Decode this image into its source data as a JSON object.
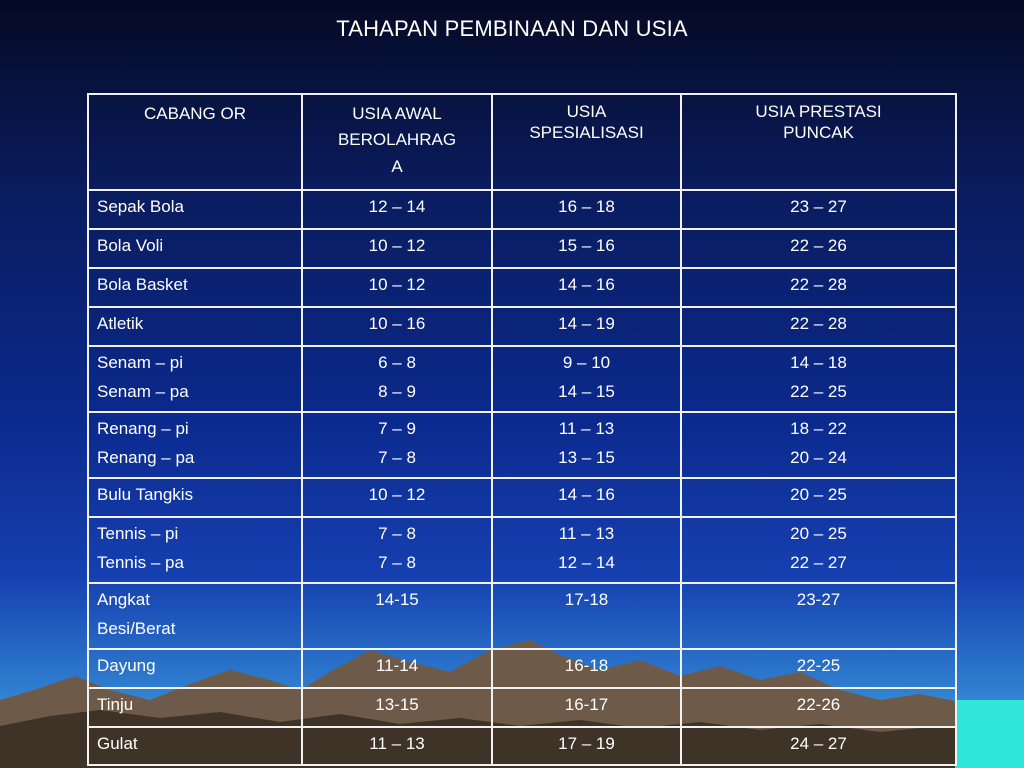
{
  "title": "TAHAPAN PEMBINAAN DAN USIA",
  "table": {
    "headers": [
      "CABANG OR",
      "USIA AWAL BEROLAHRAGA",
      "USIA SPESIALISASI",
      "USIA PRESTASI PUNCAK"
    ],
    "header_lines": {
      "col2": [
        "USIA AWAL",
        "BEROLAHRAG",
        "A"
      ],
      "col3": [
        "USIA",
        "SPESIALISASI"
      ],
      "col4": [
        "USIA PRESTASI",
        "PUNCAK"
      ]
    },
    "rows": [
      {
        "sport": [
          "Sepak Bola"
        ],
        "awal": [
          "12 – 14"
        ],
        "spesialisasi": [
          "16 – 18"
        ],
        "puncak": [
          "23 – 27"
        ]
      },
      {
        "sport": [
          "Bola Voli"
        ],
        "awal": [
          "10 – 12"
        ],
        "spesialisasi": [
          "15 – 16"
        ],
        "puncak": [
          "22 – 26"
        ]
      },
      {
        "sport": [
          "Bola Basket"
        ],
        "awal": [
          "10 – 12"
        ],
        "spesialisasi": [
          "14 – 16"
        ],
        "puncak": [
          "22 – 28"
        ]
      },
      {
        "sport": [
          "Atletik"
        ],
        "awal": [
          "10 – 16"
        ],
        "spesialisasi": [
          "14 – 19"
        ],
        "puncak": [
          "22 – 28"
        ]
      },
      {
        "sport": [
          "Senam – pi",
          "Senam – pa"
        ],
        "awal": [
          "6 – 8",
          "8 – 9"
        ],
        "spesialisasi": [
          "9 – 10",
          "14 – 15"
        ],
        "puncak": [
          "14 – 18",
          "22 – 25"
        ]
      },
      {
        "sport": [
          "Renang – pi",
          "Renang – pa"
        ],
        "awal": [
          "7 – 9",
          "7 – 8"
        ],
        "spesialisasi": [
          "11 – 13",
          "13 – 15"
        ],
        "puncak": [
          "18 – 22",
          "20 – 24"
        ]
      },
      {
        "sport": [
          "Bulu Tangkis"
        ],
        "awal": [
          "10 – 12"
        ],
        "spesialisasi": [
          "14 – 16"
        ],
        "puncak": [
          "20 – 25"
        ]
      },
      {
        "sport": [
          "Tennis – pi",
          "Tennis – pa"
        ],
        "awal": [
          "7 – 8",
          "7 – 8"
        ],
        "spesialisasi": [
          "11 – 13",
          "12 – 14"
        ],
        "puncak": [
          "20 – 25",
          "22 – 27"
        ]
      },
      {
        "sport": [
          "Angkat",
          "Besi/Berat"
        ],
        "awal": [
          "14-15"
        ],
        "spesialisasi": [
          "17-18"
        ],
        "puncak": [
          "23-27"
        ]
      },
      {
        "sport": [
          "Dayung"
        ],
        "awal": [
          "11-14"
        ],
        "spesialisasi": [
          "16-18"
        ],
        "puncak": [
          "22-25"
        ]
      },
      {
        "sport": [
          "Tinju"
        ],
        "awal": [
          "13-15"
        ],
        "spesialisasi": [
          "16-17"
        ],
        "puncak": [
          "22-26"
        ]
      },
      {
        "sport": [
          "Gulat"
        ],
        "awal": [
          "11 – 13"
        ],
        "spesialisasi": [
          "17 – 19"
        ],
        "puncak": [
          "24 – 27"
        ]
      }
    ]
  }
}
